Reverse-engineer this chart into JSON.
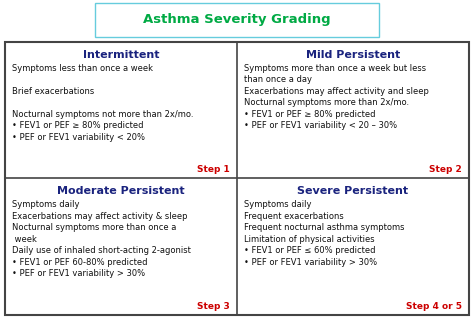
{
  "title": "Asthma Severity Grading",
  "title_color": "#00aa44",
  "title_fontsize": 9.5,
  "title_box_edge_color": "#66ccdd",
  "headers": [
    "Intermittent",
    "Mild Persistent",
    "Moderate Persistent",
    "Severe Persistent"
  ],
  "header_color": "#1a237e",
  "step_color": "#cc0000",
  "steps": [
    "Step 1",
    "Step 2",
    "Step 3",
    "Step 4 or 5"
  ],
  "cell0": "Symptoms less than once a week\n\nBrief exacerbations\n\nNocturnal symptoms not more than 2x/mo.\n• FEV1 or PEF ≥ 80% predicted\n• PEF or FEV1 variability < 20%",
  "cell1": "Symptoms more than once a week but less\nthan once a day\nExacerbations may affect activity and sleep\nNocturnal symptoms more than 2x/mo.\n• FEV1 or PEF ≥ 80% predicted\n• PEF or FEV1 variability < 20 – 30%",
  "cell2": "Symptoms daily\nExacerbations may affect activity & sleep\nNocturnal symptoms more than once a\n week\nDaily use of inhaled short-acting 2-agonist\n• FEV1 or PEF 60-80% predicted\n• PEF or FEV1 variability > 30%",
  "cell3": "Symptoms daily\nFrequent exacerbations\nFrequent nocturnal asthma symptoms\nLimitation of physical activities\n• FEV1 or PEF ≤ 60% predicted\n• PEF or FEV1 variability > 30%",
  "bg_color": "#ffffff",
  "border_color": "#444444",
  "text_color": "#111111",
  "cell_fontsize": 6.0,
  "header_fontsize": 8.0
}
